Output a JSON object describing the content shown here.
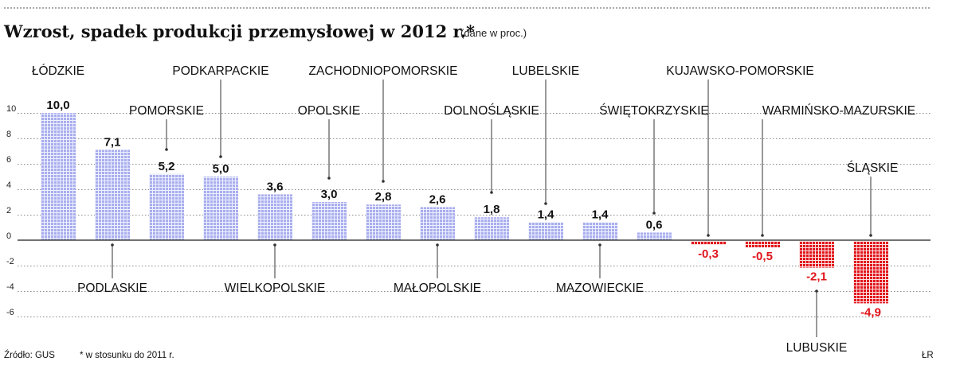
{
  "header": {
    "title": "Wzrost, spadek produkcji przemysłowej w 2012 r.*",
    "subtitle": "(dane w proc.)"
  },
  "footer": {
    "source": "Źródło: GUS",
    "note": "* w stosunku do 2011 r.",
    "author": "ŁR"
  },
  "colors": {
    "positive": "#a9aeee",
    "negative": "#e0141b",
    "text": "#111111",
    "grid": "#8a8a8a"
  },
  "chart_data": {
    "type": "bar",
    "title": "Wzrost, spadek produkcji przemysłowej w 2012 r.*",
    "subtitle": "(dane w proc.)",
    "xlabel": "",
    "ylabel": "",
    "ylim": [
      -6.8,
      11
    ],
    "yticks": [
      10,
      8,
      6,
      4,
      2,
      0,
      -2,
      -4,
      -6
    ],
    "ytick_labels": [
      "10",
      "8",
      "6",
      "4",
      "2",
      "0",
      "-2",
      "-4",
      "-6"
    ],
    "grid": true,
    "categories": [
      "ŁÓDZKIE",
      "PODLASKIE",
      "POMORSKIE",
      "PODKARPACKIE",
      "WIELKOPOLSKIE",
      "OPOLSKIE",
      "ZACHODNIOPOMORSKIE",
      "MAŁOPOLSKIE",
      "DOLNOŚLĄSKIE",
      "LUBELSKIE",
      "MAZOWIECKIE",
      "ŚWIĘTOKRZYSKIE",
      "KUJAWSKO-POMORSKIE",
      "WARMIŃSKO-MAZURSKIE",
      "LUBUSKIE",
      "ŚLĄSKIE"
    ],
    "values": [
      10.0,
      7.1,
      5.2,
      5.0,
      3.6,
      3.0,
      2.8,
      2.6,
      1.8,
      1.4,
      1.4,
      0.6,
      -0.3,
      -0.5,
      -2.1,
      -4.9
    ],
    "value_labels": [
      "10,0",
      "7,1",
      "5,2",
      "5,0",
      "3,6",
      "3,0",
      "2,8",
      "2,6",
      "1,8",
      "1,4",
      "1,4",
      "0,6",
      "-0,3",
      "-0,5",
      "-2,1",
      "-4,9"
    ]
  }
}
